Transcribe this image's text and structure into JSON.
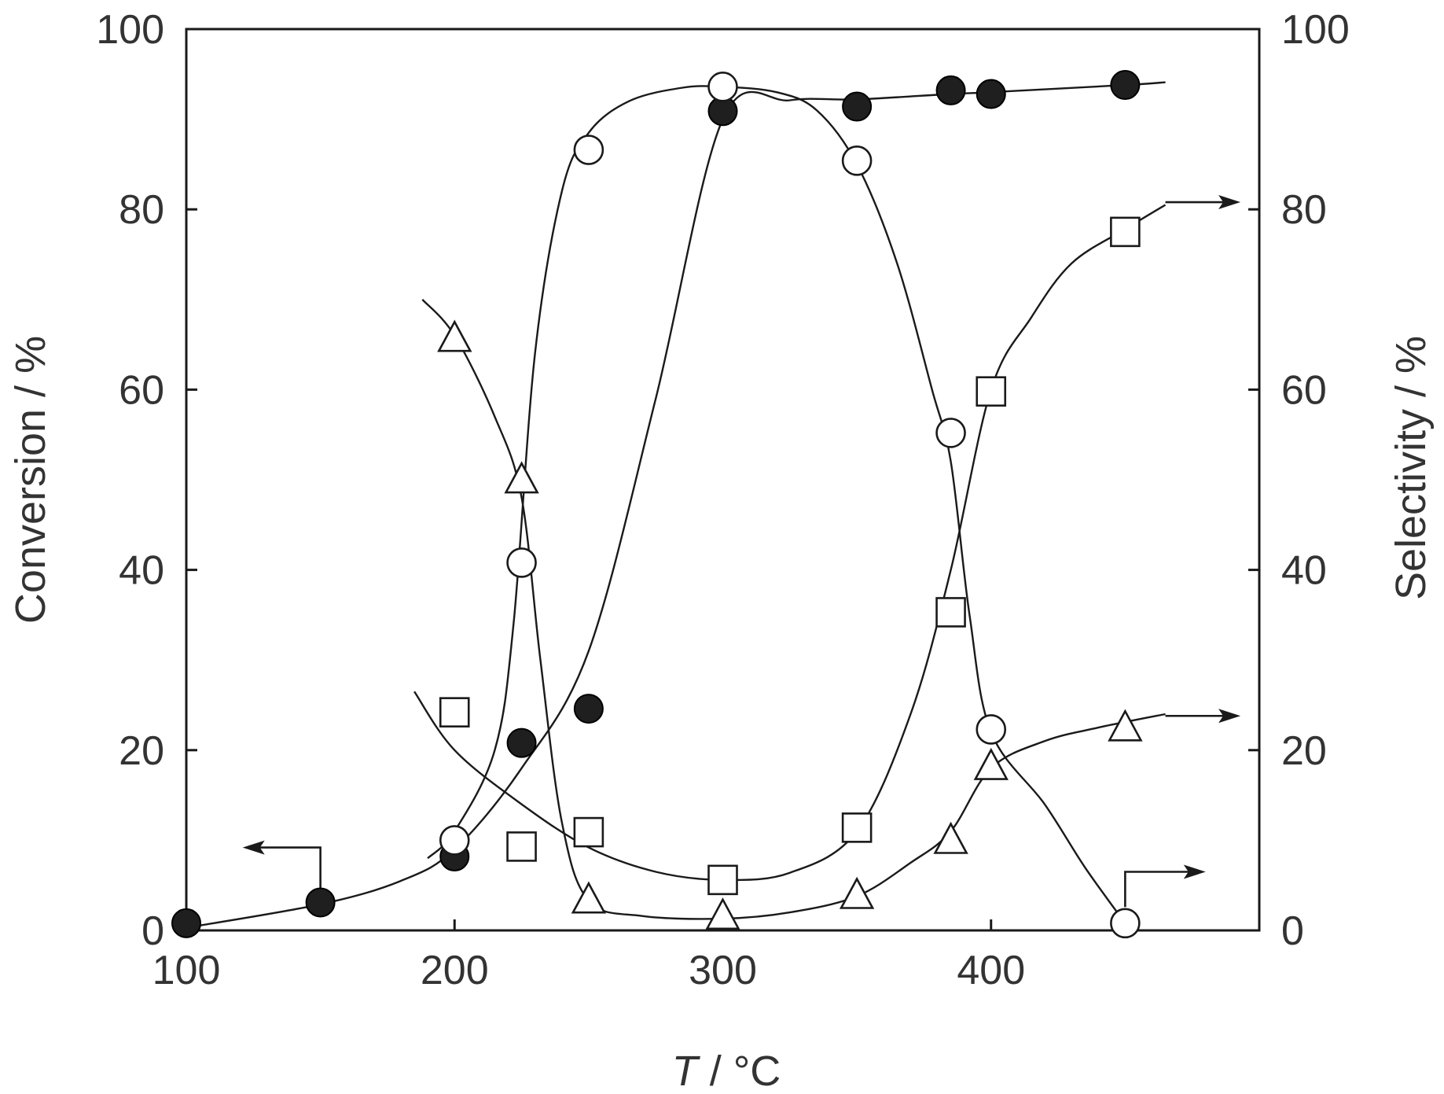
{
  "chart_data": {
    "type": "scatter",
    "title": "",
    "xlabel": {
      "italic": "T",
      "rest": " / °C"
    },
    "ylabel_left": "Conversion / %",
    "ylabel_right": "Selectivity / %",
    "xlim": [
      100,
      500
    ],
    "ylim": [
      0,
      100
    ],
    "xticks": [
      100,
      200,
      300,
      400
    ],
    "yticks": [
      0,
      20,
      40,
      60,
      80,
      100
    ],
    "grid": false,
    "legend": "none",
    "series": [
      {
        "marker": "filled-circle",
        "axis": "left",
        "points": [
          [
            100,
            0.8
          ],
          [
            150,
            3.1
          ],
          [
            200,
            8.2
          ],
          [
            225,
            20.8
          ],
          [
            250,
            24.6
          ],
          [
            300,
            90.9
          ],
          [
            350,
            91.4
          ],
          [
            385,
            93.2
          ],
          [
            400,
            92.8
          ],
          [
            450,
            93.8
          ]
        ],
        "curve": [
          [
            100,
            0.3
          ],
          [
            150,
            2.9
          ],
          [
            180,
            5.5
          ],
          [
            200,
            9
          ],
          [
            225,
            18
          ],
          [
            250,
            31
          ],
          [
            275,
            59
          ],
          [
            300,
            90
          ],
          [
            325,
            92.1
          ],
          [
            350,
            92.2
          ],
          [
            385,
            92.8
          ],
          [
            400,
            93
          ],
          [
            450,
            93.8
          ],
          [
            465,
            94.1
          ]
        ]
      },
      {
        "marker": "open-circle",
        "axis": "right",
        "points": [
          [
            200,
            10
          ],
          [
            225,
            40.8
          ],
          [
            250,
            86.6
          ],
          [
            300,
            93.6
          ],
          [
            350,
            85.4
          ],
          [
            385,
            55.2
          ],
          [
            400,
            22.3
          ],
          [
            450,
            0.8
          ]
        ],
        "curve": [
          [
            190,
            8
          ],
          [
            200,
            11
          ],
          [
            215,
            20
          ],
          [
            222,
            34
          ],
          [
            230,
            64
          ],
          [
            240,
            82
          ],
          [
            250,
            88.5
          ],
          [
            265,
            92
          ],
          [
            285,
            93.5
          ],
          [
            300,
            93.6
          ],
          [
            320,
            93
          ],
          [
            335,
            91
          ],
          [
            350,
            85
          ],
          [
            365,
            74
          ],
          [
            378,
            60
          ],
          [
            385,
            52
          ],
          [
            392,
            35
          ],
          [
            400,
            22
          ],
          [
            420,
            14
          ],
          [
            435,
            7
          ],
          [
            450,
            0.8
          ]
        ]
      },
      {
        "marker": "open-square",
        "axis": "right",
        "points": [
          [
            200,
            24.2
          ],
          [
            225,
            9.3
          ],
          [
            250,
            10.9
          ],
          [
            300,
            5.6
          ],
          [
            350,
            11.4
          ],
          [
            385,
            35.3
          ],
          [
            400,
            59.8
          ],
          [
            450,
            77.5
          ]
        ],
        "curve": [
          [
            185,
            26.5
          ],
          [
            200,
            20
          ],
          [
            225,
            14
          ],
          [
            250,
            9.2
          ],
          [
            275,
            6.5
          ],
          [
            300,
            5.6
          ],
          [
            325,
            6.4
          ],
          [
            350,
            11
          ],
          [
            370,
            24
          ],
          [
            385,
            40
          ],
          [
            400,
            60
          ],
          [
            415,
            68
          ],
          [
            430,
            74
          ],
          [
            450,
            77.8
          ],
          [
            465,
            80.5
          ]
        ]
      },
      {
        "marker": "open-triangle",
        "axis": "right",
        "points": [
          [
            200,
            65.6
          ],
          [
            225,
            49.9
          ],
          [
            250,
            3.3
          ],
          [
            300,
            1.5
          ],
          [
            350,
            3.8
          ],
          [
            385,
            9.9
          ],
          [
            400,
            18.1
          ],
          [
            450,
            22.4
          ]
        ],
        "curve": [
          [
            188,
            70
          ],
          [
            200,
            66
          ],
          [
            215,
            57
          ],
          [
            225,
            48
          ],
          [
            232,
            30
          ],
          [
            240,
            12
          ],
          [
            250,
            3.3
          ],
          [
            270,
            1.6
          ],
          [
            300,
            1.3
          ],
          [
            325,
            2
          ],
          [
            350,
            3.8
          ],
          [
            370,
            7.5
          ],
          [
            385,
            11
          ],
          [
            400,
            18
          ],
          [
            420,
            21
          ],
          [
            440,
            22.5
          ],
          [
            465,
            24
          ]
        ]
      }
    ],
    "annotations": [
      {
        "name": "arrow-to-left-axis",
        "direction": "left",
        "anchor_x": 150,
        "anchor_y": 4.5,
        "corner_y": 9.2,
        "tip_x": 121
      },
      {
        "name": "arrow-to-right-axis-square",
        "direction": "right",
        "anchor_x": 465,
        "anchor_y": 80.8,
        "tip_x": 493
      },
      {
        "name": "arrow-to-right-axis-triangle",
        "direction": "right",
        "anchor_x": 465,
        "anchor_y": 23.8,
        "tip_x": 493
      },
      {
        "name": "arrow-to-right-axis-open-circle",
        "direction": "right",
        "anchor_x": 450,
        "anchor_y": 2.6,
        "corner_y": 6.5,
        "tip_x": 480
      }
    ]
  }
}
